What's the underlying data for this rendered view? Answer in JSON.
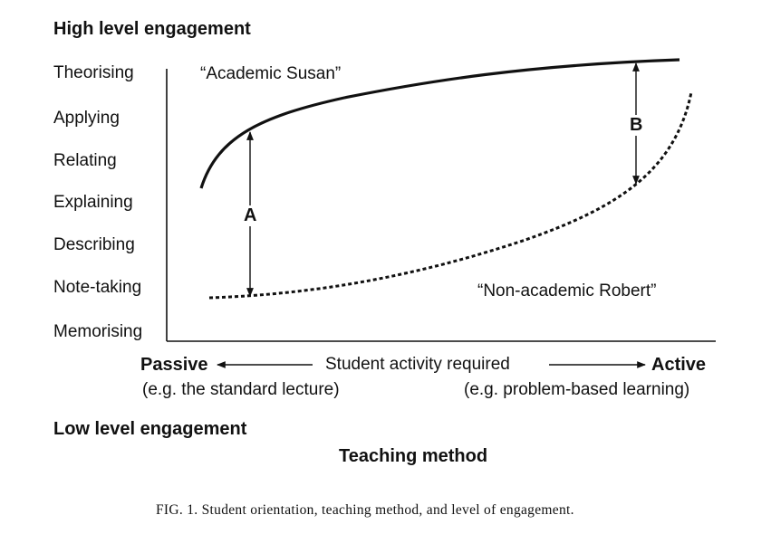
{
  "top_heading": "High level engagement",
  "bottom_heading": "Low level engagement",
  "levels": [
    "Theorising",
    "Applying",
    "Relating",
    "Explaining",
    "Describing",
    "Note-taking",
    "Memorising"
  ],
  "curve_labels": {
    "susan": "“Academic Susan”",
    "robert": "“Non-academic Robert”"
  },
  "gap_labels": {
    "a": "A",
    "b": "B"
  },
  "x_axis": {
    "left_end": "Passive",
    "middle": "Student activity required",
    "right_end": "Active",
    "left_example": "(e.g. the standard lecture)",
    "right_example": "(e.g. problem-based learning)",
    "title": "Teaching method"
  },
  "caption": "FIG. 1. Student orientation, teaching method, and level of engagement."
}
